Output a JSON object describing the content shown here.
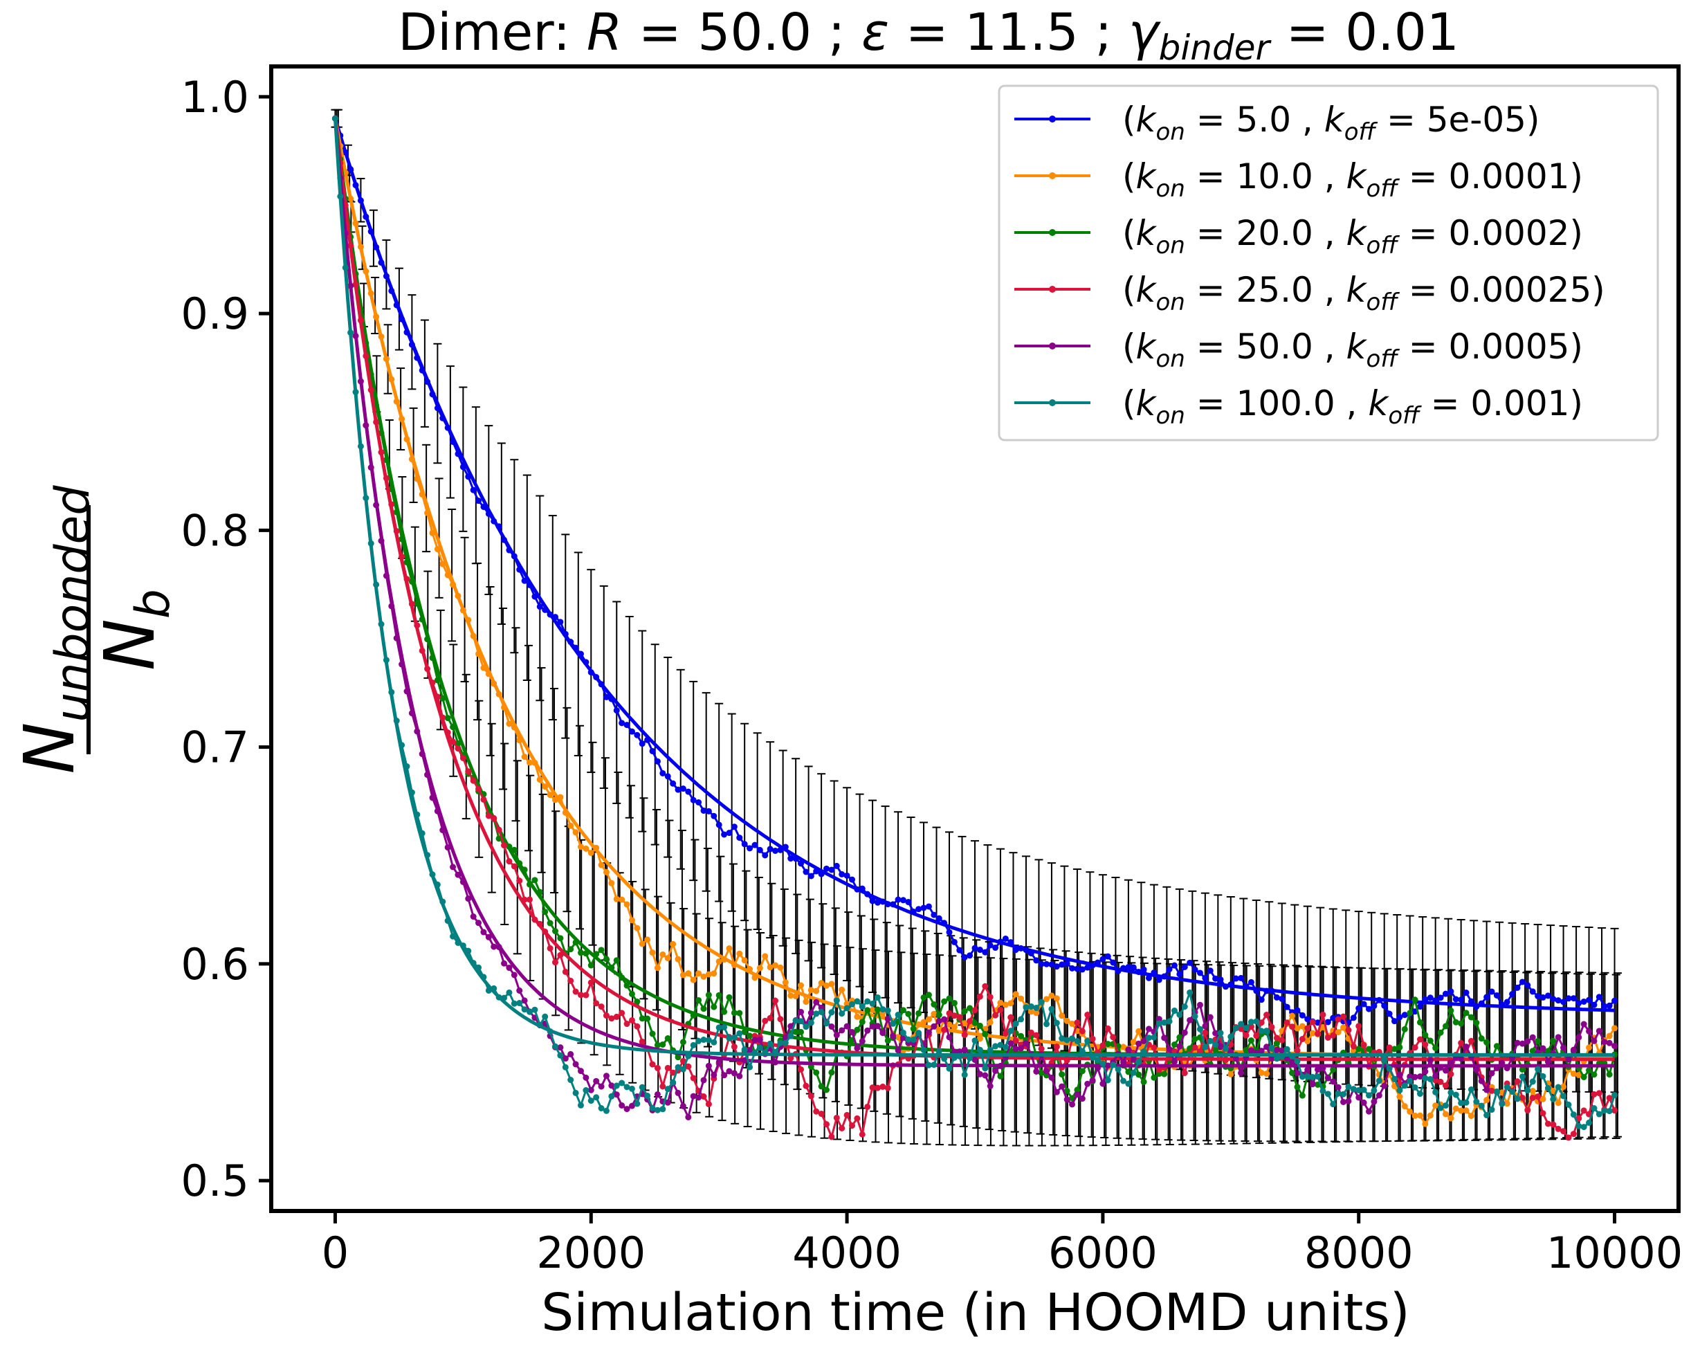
{
  "chart_data": {
    "type": "line",
    "title": {
      "prefix": "Dimer: ",
      "R_symbol": "R",
      "R_value": " = 50.0 ; ",
      "eps_symbol": "ε",
      "eps_value": " = 11.5 ; ",
      "gamma_symbol": "γ",
      "gamma_sub": "binder",
      "gamma_value": " = 0.01"
    },
    "xlabel": "Simulation time (in HOOMD units)",
    "ylabel": {
      "numerator": "N",
      "numerator_sub": "unbonded",
      "denominator": "N",
      "denominator_sub": "b"
    },
    "xlim": [
      -500,
      10500
    ],
    "ylim": [
      0.486,
      1.014
    ],
    "x_ticks": [
      0,
      2000,
      4000,
      6000,
      8000,
      10000
    ],
    "x_tick_labels": [
      "0",
      "2000",
      "4000",
      "6000",
      "8000",
      "10000"
    ],
    "y_ticks": [
      0.5,
      0.6,
      0.7,
      0.8,
      0.9,
      1.0
    ],
    "y_tick_labels": [
      "0.5",
      "0.6",
      "0.7",
      "0.8",
      "0.9",
      "1.0"
    ],
    "grid": false,
    "legend_position": "top-right",
    "series": [
      {
        "legend_open": "(",
        "kon_label": "k",
        "kon_sub": "on",
        "kon_value": " = 5.0 , ",
        "koff_label": "k",
        "koff_sub": "off",
        "koff_value": " = 5e-05)",
        "color": "#0000ee",
        "fit": {
          "y0": 0.99,
          "A": 0.575,
          "tau": 2100
        },
        "noise_seed": 11,
        "noise_amp": 0.004,
        "errorbar_amp": 0.022
      },
      {
        "legend_open": "(",
        "kon_label": "k",
        "kon_sub": "on",
        "kon_value": " = 10.0 , ",
        "koff_label": "k",
        "koff_sub": "off",
        "koff_value": " = 0.0001)",
        "color": "#ff8c00",
        "fit": {
          "y0": 0.99,
          "A": 0.557,
          "tau": 1350
        },
        "noise_seed": 23,
        "noise_amp": 0.007,
        "errorbar_amp": 0.0
      },
      {
        "legend_open": "(",
        "kon_label": "k",
        "kon_sub": "on",
        "kon_value": " = 20.0 , ",
        "koff_label": "k",
        "koff_sub": "off",
        "koff_value": " = 0.0002)",
        "color": "#008000",
        "fit": {
          "y0": 0.99,
          "A": 0.558,
          "tau": 900
        },
        "noise_seed": 37,
        "noise_amp": 0.009,
        "errorbar_amp": 0.0
      },
      {
        "legend_open": "(",
        "kon_label": "k",
        "kon_sub": "on",
        "kon_value": " = 25.0 , ",
        "koff_label": "k",
        "koff_sub": "off",
        "koff_value": " = 0.00025)",
        "color": "#dc143c",
        "fit": {
          "y0": 0.99,
          "A": 0.556,
          "tau": 820
        },
        "noise_seed": 51,
        "noise_amp": 0.01,
        "errorbar_amp": 0.0
      },
      {
        "legend_open": "(",
        "kon_label": "k",
        "kon_sub": "on",
        "kon_value": " = 50.0 , ",
        "koff_label": "k",
        "koff_sub": "off",
        "koff_value": " = 0.0005)",
        "color": "#8b008b",
        "fit": {
          "y0": 0.99,
          "A": 0.553,
          "tau": 620
        },
        "noise_seed": 67,
        "noise_amp": 0.008,
        "errorbar_amp": 0.0
      },
      {
        "legend_open": "(",
        "kon_label": "k",
        "kon_sub": "on",
        "kon_value": " = 100.0 , ",
        "koff_label": "k",
        "koff_sub": "off",
        "koff_value": " = 0.001)",
        "color": "#008080",
        "fit": {
          "y0": 0.99,
          "A": 0.558,
          "tau": 460
        },
        "noise_seed": 83,
        "noise_amp": 0.009,
        "errorbar_amp": 0.0
      }
    ]
  }
}
